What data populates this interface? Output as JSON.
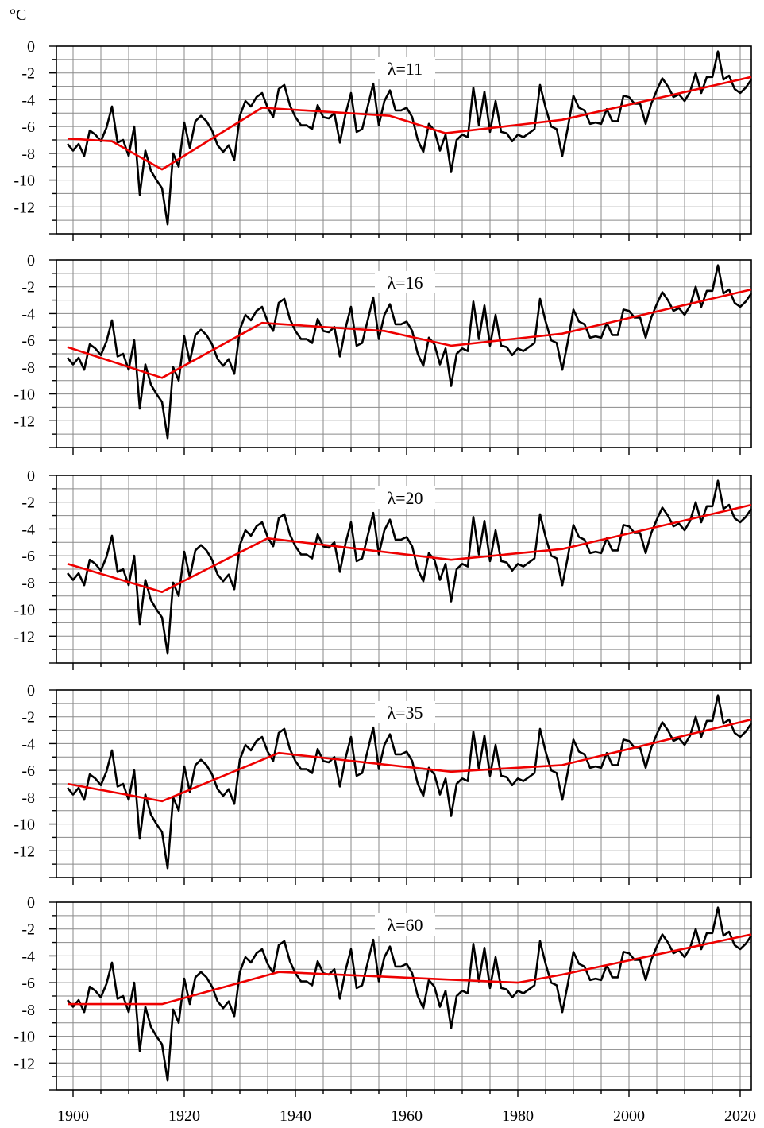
{
  "unit_label": "°C",
  "colors": {
    "observed": "#000000",
    "trend": "#ee0000",
    "grid": "#8a8a8a",
    "background": "#ffffff"
  },
  "chart_data": [
    {
      "type": "line",
      "label": "λ=11",
      "xlim": [
        1897,
        2022
      ],
      "ylim": [
        -14,
        0
      ],
      "xticks": [
        1900,
        1920,
        1940,
        1960,
        1980,
        2000,
        2020
      ],
      "yticks": [
        0,
        -2,
        -4,
        -6,
        -8,
        -10,
        -12
      ],
      "grid": true,
      "series": [
        {
          "ref": "observed"
        },
        {
          "ref": "trend",
          "x": [
            1899,
            1907,
            1916,
            1934,
            1957,
            1967,
            1988,
            2022
          ],
          "y": [
            -6.9,
            -7.1,
            -9.2,
            -4.6,
            -5.2,
            -6.5,
            -5.5,
            -2.3
          ]
        }
      ]
    },
    {
      "type": "line",
      "label": "λ=16",
      "xlim": [
        1897,
        2022
      ],
      "ylim": [
        -14,
        0
      ],
      "xticks": [
        1900,
        1920,
        1940,
        1960,
        1980,
        2000,
        2020
      ],
      "yticks": [
        0,
        -2,
        -4,
        -6,
        -8,
        -10,
        -12
      ],
      "grid": true,
      "series": [
        {
          "ref": "observed"
        },
        {
          "ref": "trend",
          "x": [
            1899,
            1916,
            1934,
            1956,
            1968,
            1988,
            2022
          ],
          "y": [
            -6.5,
            -8.8,
            -4.7,
            -5.3,
            -6.4,
            -5.5,
            -2.2
          ]
        }
      ]
    },
    {
      "type": "line",
      "label": "λ=20",
      "xlim": [
        1897,
        2022
      ],
      "ylim": [
        -14,
        0
      ],
      "xticks": [
        1900,
        1920,
        1940,
        1960,
        1980,
        2000,
        2020
      ],
      "yticks": [
        0,
        -2,
        -4,
        -6,
        -8,
        -10,
        -12
      ],
      "grid": true,
      "series": [
        {
          "ref": "observed"
        },
        {
          "ref": "trend",
          "x": [
            1899,
            1916,
            1935,
            1968,
            1988,
            2022
          ],
          "y": [
            -6.6,
            -8.7,
            -4.7,
            -6.3,
            -5.5,
            -2.2
          ]
        }
      ]
    },
    {
      "type": "line",
      "label": "λ=35",
      "xlim": [
        1897,
        2022
      ],
      "ylim": [
        -14,
        0
      ],
      "xticks": [
        1900,
        1920,
        1940,
        1960,
        1980,
        2000,
        2020
      ],
      "yticks": [
        0,
        -2,
        -4,
        -6,
        -8,
        -10,
        -12
      ],
      "grid": true,
      "series": [
        {
          "ref": "observed"
        },
        {
          "ref": "trend",
          "x": [
            1899,
            1916,
            1937,
            1968,
            1988,
            2022
          ],
          "y": [
            -7.0,
            -8.3,
            -4.7,
            -6.1,
            -5.6,
            -2.2
          ]
        }
      ]
    },
    {
      "type": "line",
      "label": "λ=60",
      "xlim": [
        1897,
        2022
      ],
      "ylim": [
        -14,
        0
      ],
      "xticks": [
        1900,
        1920,
        1940,
        1960,
        1980,
        2000,
        2020
      ],
      "yticks": [
        0,
        -2,
        -4,
        -6,
        -8,
        -10,
        -12
      ],
      "grid": true,
      "series": [
        {
          "ref": "observed"
        },
        {
          "ref": "trend",
          "x": [
            1899,
            1916,
            1937,
            1980,
            1988,
            2022
          ],
          "y": [
            -7.6,
            -7.6,
            -5.2,
            -6.0,
            -5.4,
            -2.4
          ]
        }
      ]
    }
  ],
  "observed_series": {
    "x": [
      1899,
      1900,
      1901,
      1902,
      1903,
      1904,
      1905,
      1906,
      1907,
      1908,
      1909,
      1910,
      1911,
      1912,
      1913,
      1914,
      1915,
      1916,
      1917,
      1918,
      1919,
      1920,
      1921,
      1922,
      1923,
      1924,
      1925,
      1926,
      1927,
      1928,
      1929,
      1930,
      1931,
      1932,
      1933,
      1934,
      1935,
      1936,
      1937,
      1938,
      1939,
      1940,
      1941,
      1942,
      1943,
      1944,
      1945,
      1946,
      1947,
      1948,
      1949,
      1950,
      1951,
      1952,
      1953,
      1954,
      1955,
      1956,
      1957,
      1958,
      1959,
      1960,
      1961,
      1962,
      1963,
      1964,
      1965,
      1966,
      1967,
      1968,
      1969,
      1970,
      1971,
      1972,
      1973,
      1974,
      1975,
      1976,
      1977,
      1978,
      1979,
      1980,
      1981,
      1982,
      1983,
      1984,
      1985,
      1986,
      1987,
      1988,
      1989,
      1990,
      1991,
      1992,
      1993,
      1994,
      1995,
      1996,
      1997,
      1998,
      1999,
      2000,
      2001,
      2002,
      2003,
      2004,
      2005,
      2006,
      2007,
      2008,
      2009,
      2010,
      2011,
      2012,
      2013,
      2014,
      2015,
      2016,
      2017,
      2018,
      2019,
      2020,
      2021,
      2022
    ],
    "y": [
      -7.3,
      -7.8,
      -7.3,
      -8.2,
      -6.3,
      -6.6,
      -7.1,
      -6.1,
      -4.5,
      -7.2,
      -7.0,
      -8.2,
      -6.0,
      -11.1,
      -7.8,
      -9.3,
      -10.0,
      -10.6,
      -13.3,
      -8.0,
      -9.0,
      -5.7,
      -7.6,
      -5.6,
      -5.2,
      -5.6,
      -6.3,
      -7.4,
      -7.9,
      -7.4,
      -8.5,
      -5.2,
      -4.1,
      -4.5,
      -3.8,
      -3.5,
      -4.6,
      -5.3,
      -3.2,
      -2.9,
      -4.4,
      -5.3,
      -5.9,
      -5.9,
      -6.2,
      -4.4,
      -5.3,
      -5.4,
      -5.0,
      -7.2,
      -5.1,
      -3.5,
      -6.4,
      -6.2,
      -4.5,
      -2.8,
      -5.9,
      -4.1,
      -3.3,
      -4.8,
      -4.8,
      -4.6,
      -5.3,
      -7.0,
      -7.9,
      -5.8,
      -6.3,
      -7.8,
      -6.6,
      -9.4,
      -7.0,
      -6.6,
      -6.8,
      -3.1,
      -5.9,
      -3.4,
      -6.4,
      -4.1,
      -6.4,
      -6.5,
      -7.1,
      -6.6,
      -6.8,
      -6.5,
      -6.2,
      -2.9,
      -4.6,
      -6.0,
      -6.2,
      -8.2,
      -6.1,
      -3.7,
      -4.6,
      -4.8,
      -5.8,
      -5.7,
      -5.8,
      -4.7,
      -5.6,
      -5.6,
      -3.7,
      -3.8,
      -4.3,
      -4.3,
      -5.8,
      -4.3,
      -3.3,
      -2.4,
      -3.0,
      -3.8,
      -3.6,
      -4.1,
      -3.4,
      -2.0,
      -3.5,
      -2.3,
      -2.3,
      -0.4,
      -2.5,
      -2.2,
      -3.2,
      -3.5,
      -3.1,
      -2.5
    ]
  }
}
